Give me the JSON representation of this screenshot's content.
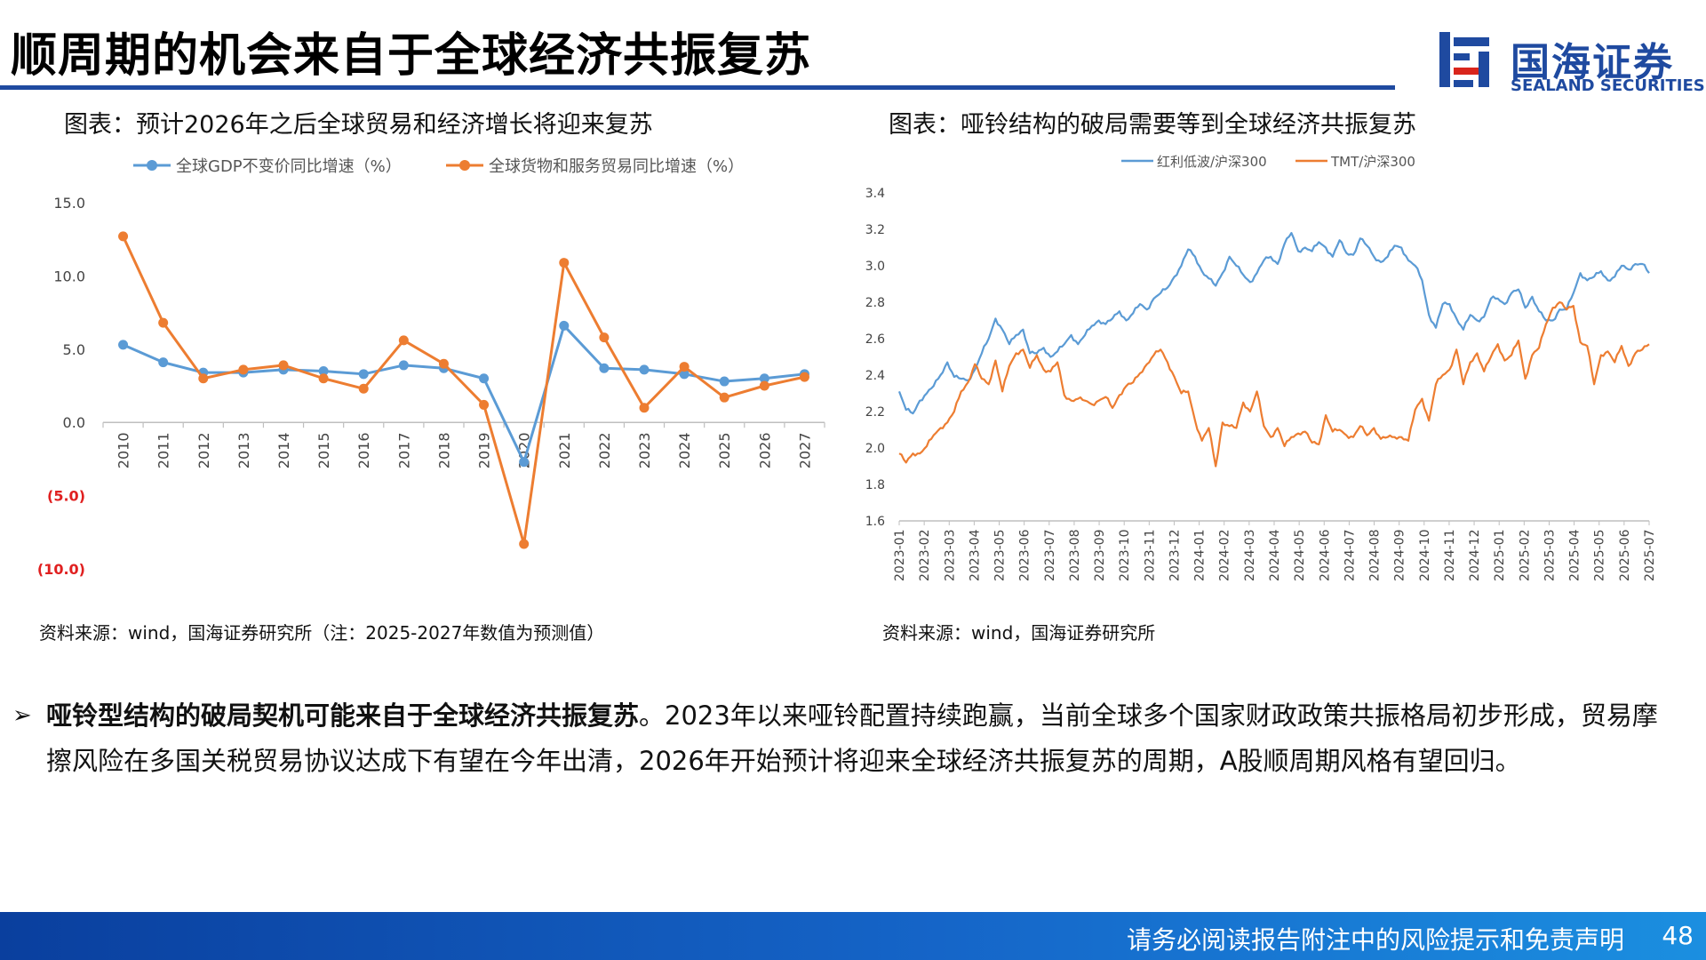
{
  "slide": {
    "title": "顺周期的机会来自于全球经济共振复苏",
    "logo_name": "国海证券",
    "logo_sub": "SEALAND SECURITIES",
    "footer": "请务必阅读报告附注中的风险提示和免责声明",
    "page_number": "48"
  },
  "colors": {
    "blue": "#5b9bd5",
    "orange": "#ed7d31",
    "brand": "#1f4aa0",
    "negative_tick": "#e02020"
  },
  "left": {
    "caption": "图表：预计2026年之后全球贸易和经济增长将迎来复苏",
    "source": "资料来源：wind，国海证券研究所（注：2025-2027年数值为预测值）"
  },
  "right": {
    "caption": "图表：哑铃结构的破局需要等到全球经济共振复苏",
    "source": "资料来源：wind，国海证券研究所"
  },
  "bullet": {
    "arrow": "➢",
    "bold": "哑铃型结构的破局契机可能来自于全球经济共振复苏",
    "text": "。2023年以来哑铃配置持续跑赢，当前全球多个国家财政政策共振格局初步形成，贸易摩擦风险在多国关税贸易协议达成下有望在今年出清，2026年开始预计将迎来全球经济共振复苏的周期，A股顺周期风格有望回归。"
  },
  "chart_data": [
    {
      "type": "line",
      "categories": [
        "2010",
        "2011",
        "2012",
        "2013",
        "2014",
        "2015",
        "2016",
        "2017",
        "2018",
        "2019",
        "2020",
        "2021",
        "2022",
        "2023",
        "2024",
        "2025",
        "2026",
        "2027"
      ],
      "series": [
        {
          "name": "全球GDP不变价同比增速（%）",
          "color": "#5b9bd5",
          "values": [
            5.3,
            4.1,
            3.4,
            3.4,
            3.6,
            3.5,
            3.3,
            3.9,
            3.7,
            3.0,
            -2.7,
            6.6,
            3.7,
            3.6,
            3.3,
            2.8,
            3.0,
            3.3
          ]
        },
        {
          "name": "全球货物和服务贸易同比增速（%）",
          "color": "#ed7d31",
          "values": [
            12.7,
            6.8,
            3.0,
            3.6,
            3.9,
            3.0,
            2.3,
            5.6,
            4.0,
            1.2,
            -8.3,
            10.9,
            5.8,
            1.0,
            3.8,
            1.7,
            2.5,
            3.1
          ]
        }
      ],
      "y_ticks": [
        "15.0",
        "10.0",
        "5.0",
        "0.0",
        "(5.0)",
        "(10.0)"
      ],
      "ylim": [
        -10,
        15
      ]
    },
    {
      "type": "line",
      "x_ticks": [
        "2023-01",
        "2023-02",
        "2023-03",
        "2023-04",
        "2023-05",
        "2023-06",
        "2023-07",
        "2023-08",
        "2023-09",
        "2023-10",
        "2023-11",
        "2023-12",
        "2024-01",
        "2024-02",
        "2024-03",
        "2024-04",
        "2024-05",
        "2024-06",
        "2024-07",
        "2024-08",
        "2024-09",
        "2024-10",
        "2024-11",
        "2024-12",
        "2025-01",
        "2025-02",
        "2025-03",
        "2025-04",
        "2025-05",
        "2025-06",
        "2025-07"
      ],
      "y_ticks": [
        "3.4",
        "3.2",
        "3.0",
        "2.8",
        "2.6",
        "2.4",
        "2.2",
        "2.0",
        "1.8",
        "1.6"
      ],
      "ylim": [
        1.6,
        3.4
      ],
      "series": [
        {
          "name": "红利低波/沪深300",
          "color": "#5b9bd5",
          "values": [
            2.31,
            2.21,
            2.19,
            2.26,
            2.3,
            2.34,
            2.4,
            2.47,
            2.39,
            2.38,
            2.37,
            2.43,
            2.52,
            2.6,
            2.71,
            2.65,
            2.57,
            2.62,
            2.65,
            2.52,
            2.52,
            2.55,
            2.5,
            2.53,
            2.57,
            2.62,
            2.57,
            2.62,
            2.67,
            2.7,
            2.68,
            2.71,
            2.75,
            2.7,
            2.74,
            2.79,
            2.76,
            2.82,
            2.85,
            2.88,
            2.94,
            3.0,
            3.09,
            3.05,
            2.97,
            2.93,
            2.89,
            2.96,
            3.05,
            3.0,
            2.95,
            2.91,
            2.96,
            3.03,
            3.05,
            3.01,
            3.12,
            3.18,
            3.08,
            3.1,
            3.08,
            3.13,
            3.1,
            3.05,
            3.14,
            3.07,
            3.06,
            3.15,
            3.11,
            3.05,
            3.02,
            3.05,
            3.11,
            3.1,
            3.03,
            3.0,
            2.92,
            2.73,
            2.66,
            2.79,
            2.79,
            2.71,
            2.65,
            2.73,
            2.7,
            2.72,
            2.82,
            2.82,
            2.79,
            2.85,
            2.87,
            2.77,
            2.83,
            2.75,
            2.7,
            2.7,
            2.76,
            2.76,
            2.85,
            2.96,
            2.92,
            2.94,
            2.97,
            2.92,
            2.94,
            3.0,
            2.98,
            3.01,
            3.01,
            2.96
          ]
        },
        {
          "name": "TMT/沪深300",
          "color": "#ed7d31",
          "values": [
            1.97,
            1.92,
            1.97,
            1.97,
            2.01,
            2.07,
            2.11,
            2.14,
            2.2,
            2.31,
            2.36,
            2.46,
            2.38,
            2.35,
            2.48,
            2.31,
            2.45,
            2.52,
            2.54,
            2.44,
            2.51,
            2.43,
            2.42,
            2.47,
            2.29,
            2.26,
            2.27,
            2.26,
            2.24,
            2.26,
            2.28,
            2.22,
            2.29,
            2.34,
            2.36,
            2.41,
            2.46,
            2.51,
            2.54,
            2.47,
            2.39,
            2.3,
            2.31,
            2.15,
            2.04,
            2.11,
            1.9,
            2.14,
            2.12,
            2.11,
            2.25,
            2.2,
            2.31,
            2.12,
            2.06,
            2.11,
            2.01,
            2.06,
            2.08,
            2.09,
            2.03,
            2.02,
            2.18,
            2.09,
            2.1,
            2.07,
            2.06,
            2.12,
            2.07,
            2.11,
            2.05,
            2.06,
            2.06,
            2.06,
            2.04,
            2.21,
            2.27,
            2.15,
            2.35,
            2.4,
            2.43,
            2.54,
            2.35,
            2.47,
            2.52,
            2.42,
            2.5,
            2.57,
            2.48,
            2.51,
            2.59,
            2.38,
            2.51,
            2.55,
            2.68,
            2.77,
            2.8,
            2.76,
            2.78,
            2.58,
            2.56,
            2.35,
            2.51,
            2.53,
            2.47,
            2.56,
            2.45,
            2.52,
            2.54,
            2.57
          ]
        }
      ]
    }
  ]
}
